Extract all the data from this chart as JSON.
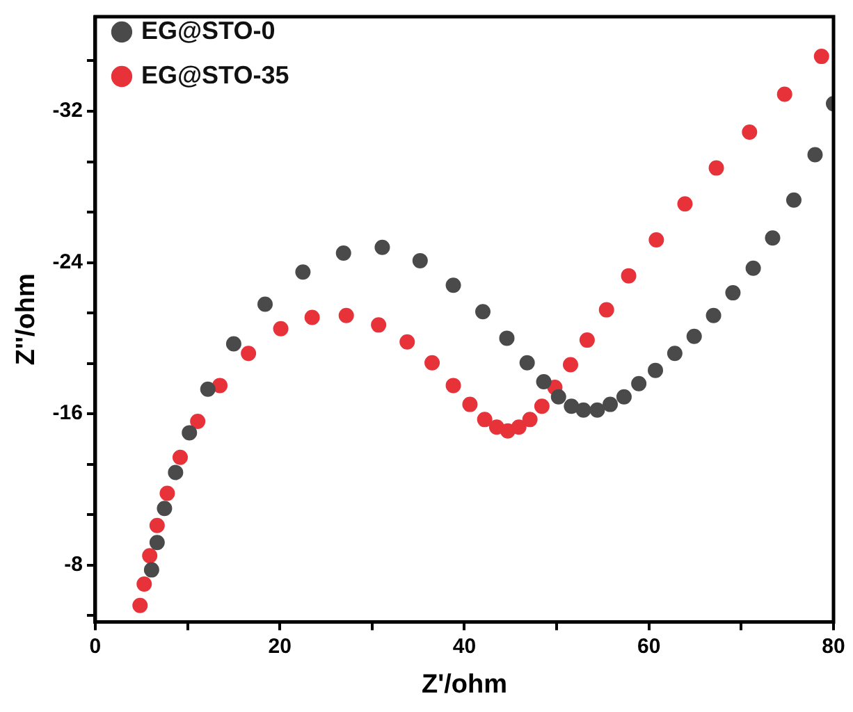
{
  "chart_data": {
    "type": "scatter",
    "xlabel": "Z'/ohm",
    "ylabel": "Z''/ohm",
    "xlim": [
      0,
      80
    ],
    "xticks": [
      0,
      {
        "value": 10,
        "label": null
      },
      20,
      {
        "value": 30,
        "label": null
      },
      40,
      {
        "value": 50,
        "label": null
      },
      60,
      {
        "value": 70,
        "label": null
      },
      80
    ],
    "ylim": [
      -5,
      -37
    ],
    "yticks": [
      {
        "value": -5.33,
        "label": null
      },
      -8,
      {
        "value": -10.67,
        "label": null
      },
      {
        "value": -13.33,
        "label": null
      },
      -16,
      {
        "value": -18.67,
        "label": null
      },
      {
        "value": -21.33,
        "label": null
      },
      -24,
      {
        "value": -26.67,
        "label": null
      },
      {
        "value": -29.33,
        "label": null
      },
      -32,
      {
        "value": -34.67,
        "label": null
      }
    ],
    "grid": false,
    "legend": "top left",
    "marker": "circle",
    "series": [
      {
        "name": "EG@STO-0",
        "color": "#4a4a4a",
        "x": [
          6.1,
          6.7,
          7.5,
          8.7,
          10.2,
          12.2,
          15.0,
          18.4,
          22.5,
          26.9,
          31.1,
          35.2,
          38.8,
          42.0,
          44.6,
          46.8,
          48.6,
          50.2,
          51.6,
          52.9,
          54.4,
          55.8,
          57.3,
          58.9,
          60.7,
          62.8,
          64.9,
          67.0,
          69.1,
          71.3,
          73.4,
          75.7,
          78.0,
          80.0
        ],
        "values": [
          -7.75,
          -9.2,
          -11.0,
          -12.9,
          -15.0,
          -17.3,
          -19.7,
          -21.8,
          -23.5,
          -24.5,
          -24.8,
          -24.1,
          -22.8,
          -21.4,
          -20.0,
          -18.7,
          -17.7,
          -16.9,
          -16.4,
          -16.2,
          -16.2,
          -16.5,
          -16.9,
          -17.6,
          -18.3,
          -19.2,
          -20.1,
          -21.2,
          -22.4,
          -23.7,
          -25.3,
          -27.3,
          -29.7,
          -32.4
        ]
      },
      {
        "name": "EG@STO-35",
        "color": "#e8323a",
        "x": [
          4.85,
          5.3,
          5.9,
          6.7,
          7.8,
          9.2,
          11.1,
          13.5,
          16.6,
          20.1,
          23.5,
          27.2,
          30.7,
          33.8,
          36.5,
          38.8,
          40.6,
          42.2,
          43.5,
          44.7,
          45.9,
          47.1,
          48.4,
          49.8,
          51.5,
          53.3,
          55.4,
          57.8,
          60.8,
          63.9,
          67.3,
          70.9,
          74.7,
          78.7
        ],
        "values": [
          -5.87,
          -7.0,
          -8.5,
          -10.1,
          -11.8,
          -13.7,
          -15.6,
          -17.5,
          -19.2,
          -20.5,
          -21.1,
          -21.2,
          -20.7,
          -19.8,
          -18.7,
          -17.5,
          -16.5,
          -15.7,
          -15.3,
          -15.1,
          -15.3,
          -15.7,
          -16.4,
          -17.4,
          -18.6,
          -19.9,
          -21.5,
          -23.3,
          -25.2,
          -27.1,
          -29.0,
          -30.9,
          -32.9,
          -34.9
        ]
      }
    ]
  }
}
